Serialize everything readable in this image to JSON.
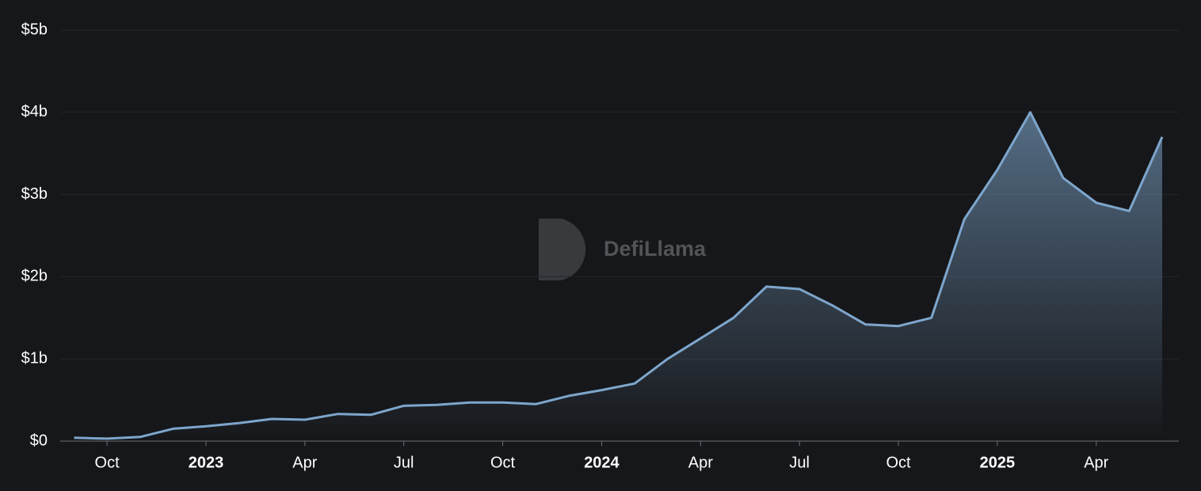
{
  "chart_data": {
    "type": "area",
    "watermark": "DefiLlama",
    "x": [
      "2022-09",
      "2022-10",
      "2022-11",
      "2022-12",
      "2023-01",
      "2023-02",
      "2023-03",
      "2023-04",
      "2023-05",
      "2023-06",
      "2023-07",
      "2023-08",
      "2023-09",
      "2023-10",
      "2023-11",
      "2023-12",
      "2024-01",
      "2024-02",
      "2024-03",
      "2024-04",
      "2024-05",
      "2024-06",
      "2024-07",
      "2024-08",
      "2024-09",
      "2024-10",
      "2024-11",
      "2024-12",
      "2025-01",
      "2025-02",
      "2025-03",
      "2025-04",
      "2025-05",
      "2025-06"
    ],
    "values": [
      0.04,
      0.03,
      0.05,
      0.15,
      0.18,
      0.22,
      0.27,
      0.26,
      0.33,
      0.32,
      0.43,
      0.44,
      0.47,
      0.47,
      0.45,
      0.55,
      0.62,
      0.7,
      1.0,
      1.25,
      1.5,
      1.88,
      1.85,
      1.65,
      1.42,
      1.4,
      1.5,
      2.7,
      3.3,
      4.0,
      3.2,
      2.9,
      2.8,
      3.7
    ],
    "color": "#7ea6cc",
    "xlim": [
      "2022-09",
      "2025-06"
    ],
    "xticks": [
      {
        "value": "2022-10",
        "label": "Oct"
      },
      {
        "value": "2023-01",
        "label": "2023"
      },
      {
        "value": "2023-04",
        "label": "Apr"
      },
      {
        "value": "2023-07",
        "label": "Jul"
      },
      {
        "value": "2023-10",
        "label": "Oct"
      },
      {
        "value": "2024-01",
        "label": "2024"
      },
      {
        "value": "2024-04",
        "label": "Apr"
      },
      {
        "value": "2024-07",
        "label": "Jul"
      },
      {
        "value": "2024-10",
        "label": "Oct"
      },
      {
        "value": "2025-01",
        "label": "2025"
      },
      {
        "value": "2025-04",
        "label": "Apr"
      }
    ],
    "ylim": [
      0,
      5
    ],
    "yticks": [
      {
        "value": 0,
        "label": "$0"
      },
      {
        "value": 1,
        "label": "$1b"
      },
      {
        "value": 2,
        "label": "$2b"
      },
      {
        "value": 3,
        "label": "$3b"
      },
      {
        "value": 4,
        "label": "$4b"
      },
      {
        "value": 5,
        "label": "$5b"
      }
    ],
    "grid": true
  }
}
